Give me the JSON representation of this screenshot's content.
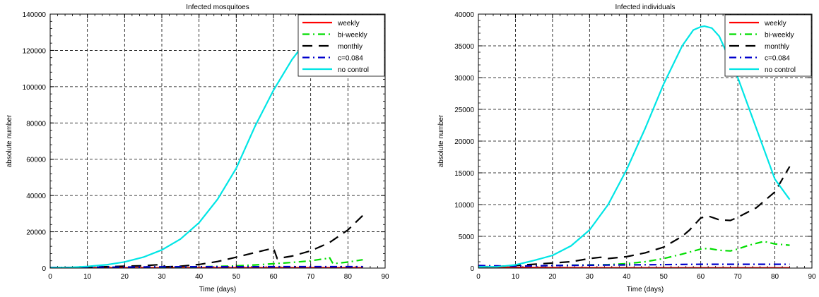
{
  "chart_data": [
    {
      "type": "line",
      "title": "Infected mosquitoes",
      "xlabel": "Time (days)",
      "ylabel": "absolute number",
      "xlim": [
        0,
        90
      ],
      "ylim": [
        0,
        140000
      ],
      "xticks": [
        0,
        10,
        20,
        30,
        40,
        50,
        60,
        70,
        80,
        90
      ],
      "yticks": [
        0,
        20000,
        40000,
        60000,
        80000,
        100000,
        120000,
        140000
      ],
      "grid": true,
      "legend_position": "top-right",
      "series": [
        {
          "name": "weekly",
          "color": "#ff0000",
          "style": "solid",
          "x": [
            0,
            10,
            20,
            30,
            40,
            50,
            60,
            70,
            80,
            84
          ],
          "y": [
            200,
            150,
            150,
            150,
            150,
            150,
            150,
            150,
            150,
            150
          ]
        },
        {
          "name": "bi-weekly",
          "color": "#00dd00",
          "style": "dashdot",
          "x": [
            0,
            10,
            20,
            30,
            40,
            50,
            55,
            60,
            65,
            70,
            74,
            75,
            76,
            80,
            84
          ],
          "y": [
            300,
            250,
            300,
            400,
            700,
            1200,
            1700,
            2400,
            3100,
            4000,
            5200,
            6000,
            2400,
            3300,
            4600
          ]
        },
        {
          "name": "monthly",
          "color": "#000000",
          "style": "dashed",
          "x": [
            0,
            10,
            20,
            25,
            30,
            31,
            35,
            40,
            45,
            50,
            55,
            60,
            61,
            65,
            70,
            75,
            80,
            84
          ],
          "y": [
            200,
            500,
            1000,
            1300,
            2000,
            700,
            1000,
            2000,
            3600,
            6000,
            8500,
            11000,
            5200,
            6600,
            9500,
            14000,
            21000,
            29000
          ]
        },
        {
          "name": "c=0.084",
          "color": "#0000cc",
          "style": "dashdot",
          "x": [
            0,
            10,
            20,
            30,
            40,
            50,
            60,
            70,
            80,
            84
          ],
          "y": [
            300,
            400,
            600,
            700,
            750,
            750,
            760,
            760,
            760,
            760
          ]
        },
        {
          "name": "no control",
          "color": "#00e5e5",
          "style": "solid",
          "x": [
            0,
            5,
            10,
            15,
            20,
            25,
            30,
            35,
            40,
            45,
            50,
            55,
            60,
            65,
            68
          ],
          "y": [
            200,
            300,
            900,
            1800,
            3400,
            6000,
            10000,
            16000,
            25000,
            38000,
            55000,
            78000,
            98000,
            115000,
            123000
          ]
        }
      ]
    },
    {
      "type": "line",
      "title": "Infected individuals",
      "xlabel": "Time (days)",
      "ylabel": "absolute number",
      "xlim": [
        0,
        90
      ],
      "ylim": [
        0,
        40000
      ],
      "xticks": [
        0,
        10,
        20,
        30,
        40,
        50,
        60,
        70,
        80,
        90
      ],
      "yticks": [
        0,
        5000,
        10000,
        15000,
        20000,
        25000,
        30000,
        35000,
        40000
      ],
      "grid": true,
      "legend_position": "top-right",
      "series": [
        {
          "name": "weekly",
          "color": "#ff0000",
          "style": "solid",
          "x": [
            0,
            5,
            10,
            15,
            20,
            30,
            40,
            50,
            60,
            70,
            80,
            84
          ],
          "y": [
            200,
            150,
            100,
            80,
            60,
            40,
            30,
            30,
            30,
            30,
            30,
            30
          ]
        },
        {
          "name": "bi-weekly",
          "color": "#00dd00",
          "style": "dashdot",
          "x": [
            0,
            5,
            10,
            15,
            20,
            25,
            30,
            35,
            40,
            45,
            50,
            55,
            60,
            62,
            65,
            68,
            70,
            73,
            77,
            80,
            84
          ],
          "y": [
            300,
            250,
            300,
            350,
            400,
            450,
            500,
            550,
            700,
            1000,
            1500,
            2200,
            3000,
            3100,
            2800,
            2700,
            3000,
            3600,
            4200,
            3800,
            3600
          ]
        },
        {
          "name": "monthly",
          "color": "#000000",
          "style": "dashed",
          "x": [
            0,
            5,
            10,
            15,
            20,
            25,
            30,
            33,
            35,
            40,
            45,
            50,
            55,
            57,
            60,
            62,
            65,
            68,
            70,
            75,
            80,
            84
          ],
          "y": [
            200,
            250,
            400,
            600,
            800,
            1000,
            1500,
            1700,
            1500,
            1800,
            2400,
            3300,
            5000,
            6000,
            7900,
            8200,
            7600,
            7500,
            8000,
            9500,
            12000,
            16000
          ]
        },
        {
          "name": "c=0.084",
          "color": "#0000cc",
          "style": "dashdot",
          "x": [
            0,
            5,
            10,
            15,
            20,
            30,
            40,
            50,
            60,
            70,
            80,
            84
          ],
          "y": [
            400,
            350,
            300,
            350,
            400,
            450,
            500,
            550,
            600,
            600,
            600,
            600
          ]
        },
        {
          "name": "no control",
          "color": "#00e5e5",
          "style": "solid",
          "x": [
            0,
            5,
            10,
            15,
            20,
            25,
            30,
            35,
            40,
            45,
            50,
            55,
            58,
            60,
            61,
            63,
            65,
            70,
            75,
            80,
            84
          ],
          "y": [
            200,
            200,
            500,
            1200,
            2000,
            3500,
            6000,
            10000,
            15500,
            22000,
            29000,
            35000,
            37500,
            38000,
            38100,
            37800,
            36500,
            30000,
            22000,
            14000,
            10800
          ]
        }
      ]
    }
  ]
}
